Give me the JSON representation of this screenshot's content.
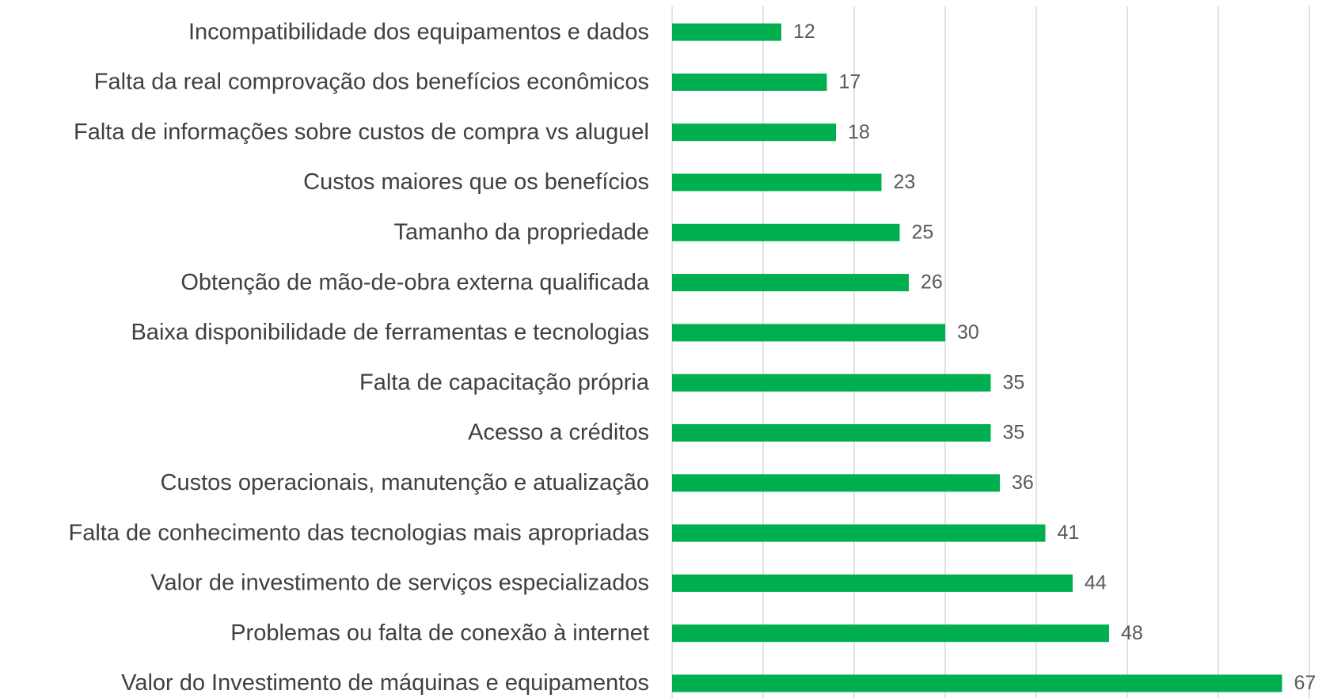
{
  "chart_data": {
    "type": "bar",
    "orientation": "horizontal",
    "categories": [
      "Incompatibilidade dos equipamentos e dados",
      "Falta da real comprovação dos benefícios econômicos",
      "Falta de informações sobre custos de compra vs aluguel",
      "Custos maiores que os benefícios",
      "Tamanho da propriedade",
      "Obtenção de mão-de-obra externa qualificada",
      "Baixa disponibilidade de ferramentas e tecnologias",
      "Falta de capacitação própria",
      "Acesso a créditos",
      "Custos operacionais, manutenção e atualização",
      "Falta de conhecimento das tecnologias mais apropriadas",
      "Valor de investimento de serviços especializados ",
      "Problemas ou falta de conexão à internet",
      "Valor do Investimento de máquinas e equipamentos"
    ],
    "values": [
      12,
      17,
      18,
      23,
      25,
      26,
      30,
      35,
      35,
      36,
      41,
      44,
      48,
      67
    ],
    "color": "#00b050",
    "xlim": [
      0,
      70
    ],
    "xticks": [
      0,
      10,
      20,
      30,
      40,
      50,
      60,
      70
    ],
    "grid": true
  }
}
